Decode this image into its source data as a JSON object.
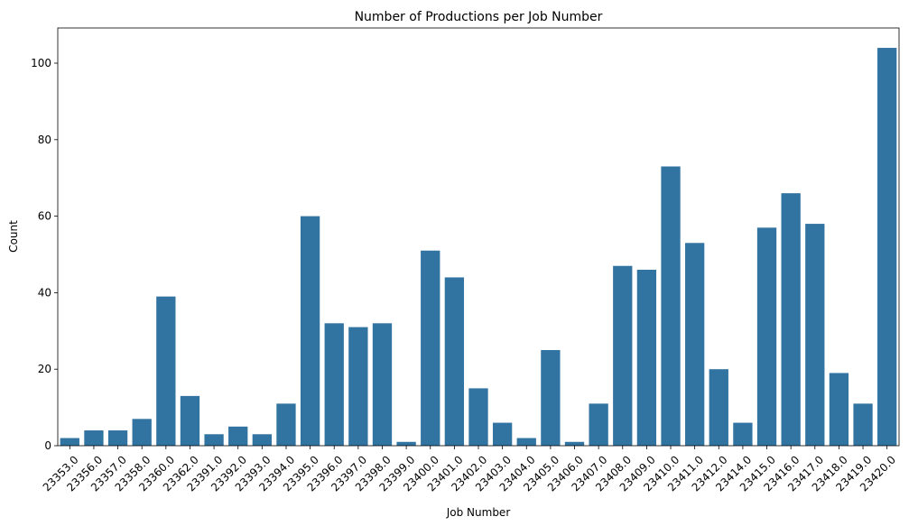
{
  "chart_data": {
    "type": "bar",
    "title": "Number of Productions per Job Number",
    "xlabel": "Job Number",
    "ylabel": "Count",
    "color": "#3274a1",
    "ylim": [
      0,
      109.2
    ],
    "yticks": [
      0,
      20,
      40,
      60,
      80,
      100
    ],
    "categories": [
      "23353.0",
      "23356.0",
      "23357.0",
      "23358.0",
      "23360.0",
      "23362.0",
      "23391.0",
      "23392.0",
      "23393.0",
      "23394.0",
      "23395.0",
      "23396.0",
      "23397.0",
      "23398.0",
      "23399.0",
      "23400.0",
      "23401.0",
      "23402.0",
      "23403.0",
      "23404.0",
      "23405.0",
      "23406.0",
      "23407.0",
      "23408.0",
      "23409.0",
      "23410.0",
      "23411.0",
      "23412.0",
      "23414.0",
      "23415.0",
      "23416.0",
      "23417.0",
      "23418.0",
      "23419.0",
      "23420.0"
    ],
    "values": [
      2,
      4,
      4,
      7,
      39,
      13,
      3,
      5,
      3,
      11,
      60,
      32,
      31,
      32,
      1,
      51,
      44,
      15,
      6,
      2,
      25,
      1,
      11,
      47,
      46,
      73,
      53,
      20,
      6,
      57,
      66,
      58,
      19,
      11,
      104
    ]
  }
}
